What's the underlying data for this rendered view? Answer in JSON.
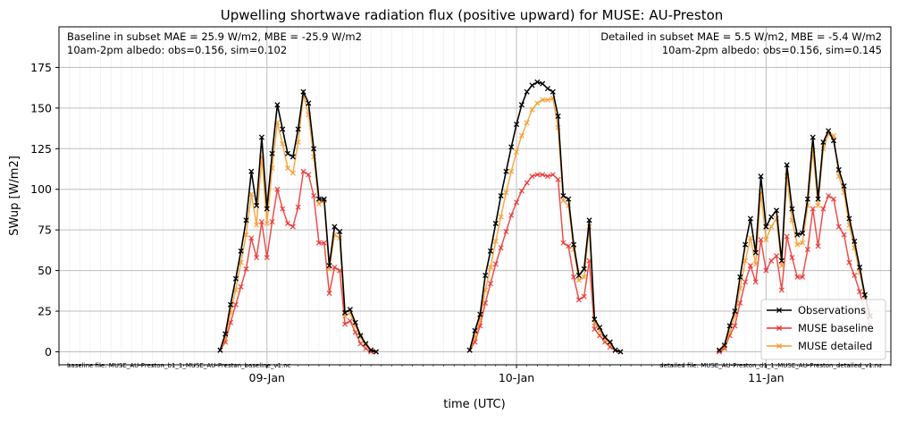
{
  "chart_data": {
    "type": "line",
    "title": "Upwelling shortwave radiation flux (positive upward) for MUSE: AU-Preston",
    "xlabel": "time (UTC)",
    "ylabel": "SWup [W/m2]",
    "ylim": [
      -8,
      200
    ],
    "xlim": [
      "2024-01-08T04:00",
      "2024-01-11T12:00"
    ],
    "yticks": [
      0,
      25,
      50,
      75,
      100,
      125,
      150,
      175
    ],
    "xticks": [
      {
        "t": "2024-01-09T00:00",
        "label": "09-Jan"
      },
      {
        "t": "2024-01-10T00:00",
        "label": "10-Jan"
      },
      {
        "t": "2024-01-11T00:00",
        "label": "11-Jan"
      }
    ],
    "grid": true,
    "legend_position": "lower-right",
    "annotations": {
      "top_left": [
        "Baseline in subset MAE = 25.9 W/m2, MBE = -25.9 W/m2",
        "10am-2pm albedo: obs=0.156, sim=0.102"
      ],
      "top_right": [
        "Detailed in subset MAE = 5.5 W/m2, MBE = -5.4 W/m2",
        "10am-2pm albedo: obs=0.156, sim=0.145"
      ],
      "bottom_left": "baseline file: MUSE_AU-Preston_b1_1_MUSE_AU-Preston_baseline_v1.nc",
      "bottom_right": "detailed file: MUSE_AU-Preston_d1_1_MUSE_AU-Preston_detailed_v1.nc"
    },
    "series": [
      {
        "name": "Observations",
        "color": "#000000",
        "days": [
          {
            "start": "2024-01-08T19:30",
            "step_minutes": 30,
            "values": [
              1,
              11,
              29,
              45,
              62,
              81,
              111,
              90,
              132,
              88,
              122,
              152,
              137,
              122,
              120,
              137,
              160,
              153,
              125,
              94,
              94,
              53,
              77,
              74,
              24,
              26,
              18,
              10,
              5,
              1,
              0
            ]
          },
          {
            "start": "2024-01-09T19:30",
            "step_minutes": 30,
            "values": [
              1,
              13,
              23,
              47,
              62,
              79,
              96,
              111,
              126,
              140,
              152,
              160,
              164,
              166,
              165,
              162,
              160,
              145,
              96,
              94,
              66,
              47,
              51,
              81,
              20,
              15,
              9,
              6,
              1,
              0
            ]
          },
          {
            "start": "2024-01-10T19:30",
            "step_minutes": 30,
            "values": [
              1,
              4,
              16,
              25,
              46,
              66,
              82,
              61,
              108,
              77,
              83,
              87,
              56,
              115,
              88,
              72,
              73,
              94,
              132,
              94,
              129,
              136,
              130,
              112,
              102,
              82,
              68,
              52,
              35,
              22
            ]
          }
        ]
      },
      {
        "name": "MUSE baseline",
        "color": "#e8302e",
        "days": [
          {
            "start": "2024-01-08T19:30",
            "step_minutes": 30,
            "values": [
              1,
              6,
              18,
              29,
              40,
              51,
              70,
              58,
              80,
              58,
              80,
              100,
              88,
              79,
              77,
              89,
              111,
              109,
              96,
              67,
              67,
              36,
              52,
              50,
              17,
              19,
              12,
              5,
              2,
              0,
              0
            ]
          },
          {
            "start": "2024-01-09T19:30",
            "step_minutes": 30,
            "values": [
              1,
              6,
              16,
              30,
              42,
              54,
              64,
              74,
              84,
              92,
              99,
              104,
              108,
              109,
              109,
              108,
              109,
              106,
              67,
              65,
              46,
              32,
              34,
              56,
              14,
              10,
              6,
              3,
              1,
              0
            ]
          },
          {
            "start": "2024-01-10T19:30",
            "step_minutes": 30,
            "values": [
              0,
              2,
              10,
              16,
              30,
              43,
              53,
              43,
              69,
              50,
              56,
              59,
              38,
              71,
              58,
              46,
              46,
              63,
              88,
              65,
              88,
              96,
              94,
              77,
              72,
              55,
              47,
              37,
              25,
              16
            ]
          }
        ]
      },
      {
        "name": "MUSE detailed",
        "color": "#f59a28",
        "days": [
          {
            "start": "2024-01-08T19:30",
            "step_minutes": 30,
            "values": [
              1,
              8,
              24,
              38,
              55,
              72,
              97,
              78,
              120,
              79,
              113,
              141,
              128,
              113,
              110,
              129,
              158,
              146,
              120,
              91,
              93,
              51,
              72,
              70,
              22,
              24,
              16,
              9,
              4,
              1,
              0
            ]
          },
          {
            "start": "2024-01-09T19:30",
            "step_minutes": 30,
            "values": [
              1,
              9,
              20,
              38,
              52,
              68,
              83,
              98,
              111,
              123,
              133,
              141,
              149,
              153,
              155,
              155,
              156,
              138,
              93,
              90,
              63,
              44,
              46,
              77,
              18,
              13,
              8,
              5,
              1,
              0
            ]
          },
          {
            "start": "2024-01-10T19:30",
            "step_minutes": 30,
            "values": [
              1,
              3,
              12,
              22,
              39,
              56,
              70,
              54,
              98,
              69,
              77,
              82,
              53,
              108,
              81,
              66,
              67,
              90,
              124,
              90,
              125,
              134,
              133,
              108,
              98,
              78,
              64,
              49,
              33,
              20
            ]
          }
        ]
      }
    ]
  }
}
